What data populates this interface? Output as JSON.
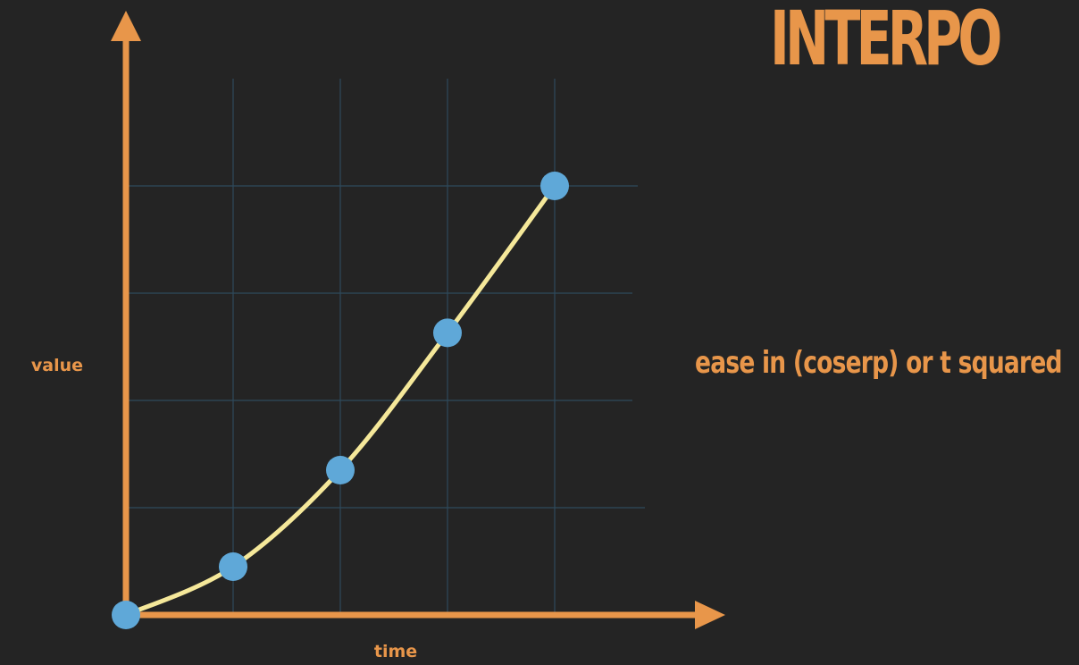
{
  "slide": {
    "title": "INTERPO",
    "subtitle": "ease in (coserp) or t squared"
  },
  "colors": {
    "background": "#242424",
    "axis": "#e8964a",
    "grid": "#2f4a5c",
    "curve": "#f5e89a",
    "points": "#5fa8d8"
  },
  "chart_data": {
    "type": "line",
    "xlabel": "time",
    "ylabel": "value",
    "xlim": [
      0,
      4
    ],
    "ylim": [
      0,
      4
    ],
    "grid": true,
    "series": [
      {
        "x": [
          0,
          1,
          2,
          3,
          4
        ],
        "values": [
          0,
          0.45,
          1.35,
          2.63,
          4
        ]
      }
    ]
  }
}
